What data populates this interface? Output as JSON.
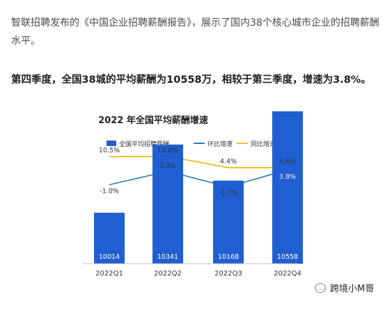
{
  "article": {
    "intro": "智联招聘发布的《中国企业招聘薪酬报告》，展示了国内38个核心城市企业的招聘薪酬水平。",
    "highlight": "第四季度，全国38城的平均薪酬为10558万，相较于第三季度，增速为3.8%。"
  },
  "chart_data": {
    "type": "bar",
    "title": "2022 年全国平均薪酬增速",
    "categories": [
      "2022Q1",
      "2022Q2",
      "2022Q3",
      "2022Q4"
    ],
    "series": [
      {
        "name": "全国平均招聘薪酬",
        "kind": "bar",
        "values": [
          10014,
          10341,
          10168,
          10558
        ],
        "color": "#1f5fd1"
      },
      {
        "name": "环比增速",
        "kind": "line",
        "values": [
          -1.0,
          3.3,
          -1.7,
          3.8
        ],
        "labels": [
          "-1.0%",
          "3.3%",
          "-1.7%",
          "3.8%"
        ],
        "color": "#2c7bb6"
      },
      {
        "name": "同比增速",
        "kind": "line",
        "values": [
          10.5,
          10.6,
          4.4,
          4.4
        ],
        "labels": [
          "10.5%",
          "10.6%",
          "4.4%",
          "4.4%"
        ],
        "color": "#f2c12e"
      }
    ],
    "legend_position": "top",
    "grid": false
  },
  "watermark": {
    "text": "跨境小M哥",
    "icon": "wechat-icon"
  }
}
